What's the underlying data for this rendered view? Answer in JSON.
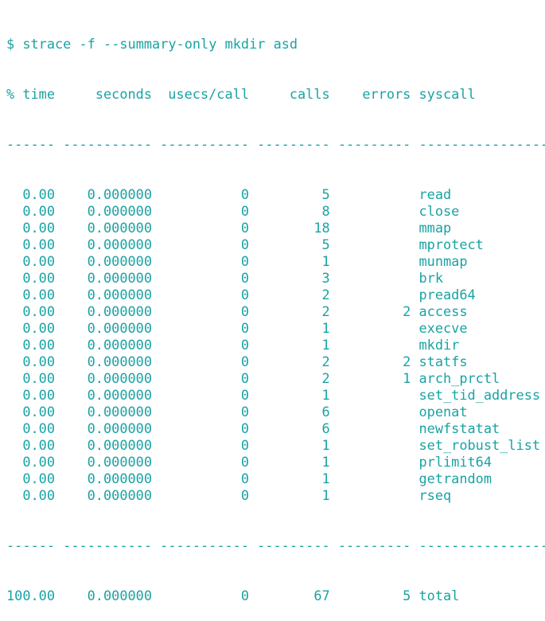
{
  "terminal": {
    "prompt": "$ strace -f --summary-only mkdir asd",
    "headers": {
      "time": "% time",
      "seconds": "seconds",
      "usecs_per_call": "usecs/call",
      "calls": "calls",
      "errors": "errors",
      "syscall": "syscall"
    },
    "separator": [
      "------",
      "-----------",
      "-----------",
      "---------",
      "---------",
      "----------------"
    ],
    "rows": [
      {
        "time": "0.00",
        "seconds": "0.000000",
        "usecs": "0",
        "calls": "5",
        "errors": "",
        "syscall": "read"
      },
      {
        "time": "0.00",
        "seconds": "0.000000",
        "usecs": "0",
        "calls": "8",
        "errors": "",
        "syscall": "close"
      },
      {
        "time": "0.00",
        "seconds": "0.000000",
        "usecs": "0",
        "calls": "18",
        "errors": "",
        "syscall": "mmap"
      },
      {
        "time": "0.00",
        "seconds": "0.000000",
        "usecs": "0",
        "calls": "5",
        "errors": "",
        "syscall": "mprotect"
      },
      {
        "time": "0.00",
        "seconds": "0.000000",
        "usecs": "0",
        "calls": "1",
        "errors": "",
        "syscall": "munmap"
      },
      {
        "time": "0.00",
        "seconds": "0.000000",
        "usecs": "0",
        "calls": "3",
        "errors": "",
        "syscall": "brk"
      },
      {
        "time": "0.00",
        "seconds": "0.000000",
        "usecs": "0",
        "calls": "2",
        "errors": "",
        "syscall": "pread64"
      },
      {
        "time": "0.00",
        "seconds": "0.000000",
        "usecs": "0",
        "calls": "2",
        "errors": "2",
        "syscall": "access"
      },
      {
        "time": "0.00",
        "seconds": "0.000000",
        "usecs": "0",
        "calls": "1",
        "errors": "",
        "syscall": "execve"
      },
      {
        "time": "0.00",
        "seconds": "0.000000",
        "usecs": "0",
        "calls": "1",
        "errors": "",
        "syscall": "mkdir"
      },
      {
        "time": "0.00",
        "seconds": "0.000000",
        "usecs": "0",
        "calls": "2",
        "errors": "2",
        "syscall": "statfs"
      },
      {
        "time": "0.00",
        "seconds": "0.000000",
        "usecs": "0",
        "calls": "2",
        "errors": "1",
        "syscall": "arch_prctl"
      },
      {
        "time": "0.00",
        "seconds": "0.000000",
        "usecs": "0",
        "calls": "1",
        "errors": "",
        "syscall": "set_tid_address"
      },
      {
        "time": "0.00",
        "seconds": "0.000000",
        "usecs": "0",
        "calls": "6",
        "errors": "",
        "syscall": "openat"
      },
      {
        "time": "0.00",
        "seconds": "0.000000",
        "usecs": "0",
        "calls": "6",
        "errors": "",
        "syscall": "newfstatat"
      },
      {
        "time": "0.00",
        "seconds": "0.000000",
        "usecs": "0",
        "calls": "1",
        "errors": "",
        "syscall": "set_robust_list"
      },
      {
        "time": "0.00",
        "seconds": "0.000000",
        "usecs": "0",
        "calls": "1",
        "errors": "",
        "syscall": "prlimit64"
      },
      {
        "time": "0.00",
        "seconds": "0.000000",
        "usecs": "0",
        "calls": "1",
        "errors": "",
        "syscall": "getrandom"
      },
      {
        "time": "0.00",
        "seconds": "0.000000",
        "usecs": "0",
        "calls": "1",
        "errors": "",
        "syscall": "rseq"
      }
    ],
    "total": {
      "time": "100.00",
      "seconds": "0.000000",
      "usecs": "0",
      "calls": "67",
      "errors": "5",
      "syscall": "total"
    },
    "text_color": "#1aa3a3"
  }
}
